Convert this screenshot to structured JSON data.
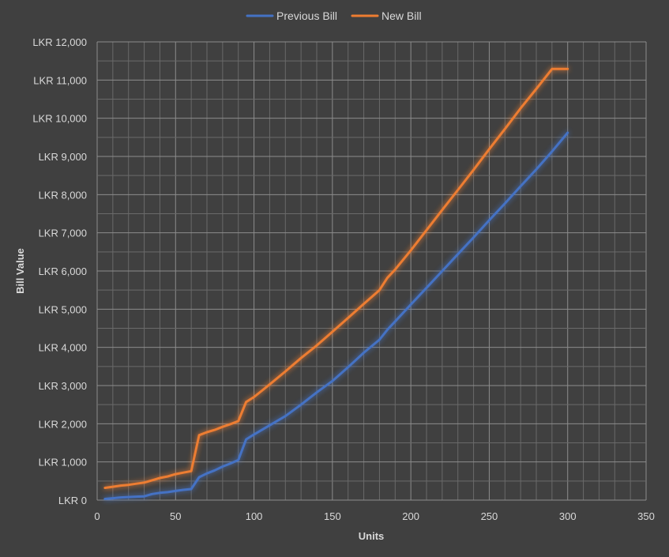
{
  "chart_data": {
    "type": "line",
    "title": "",
    "xlabel": "Units",
    "ylabel": "Bill Value",
    "xlim": [
      0,
      350
    ],
    "ylim": [
      0,
      12000
    ],
    "x_ticks": [
      0,
      50,
      100,
      150,
      200,
      250,
      300,
      350
    ],
    "y_ticks": [
      0,
      1000,
      2000,
      3000,
      4000,
      5000,
      6000,
      7000,
      8000,
      9000,
      10000,
      11000,
      12000
    ],
    "x_tick_labels": [
      "0",
      "50",
      "100",
      "150",
      "200",
      "250",
      "300",
      "350"
    ],
    "y_tick_labels": [
      "LKR 0",
      "LKR 1,000",
      "LKR 2,000",
      "LKR 3,000",
      "LKR 4,000",
      "LKR 5,000",
      "LKR 6,000",
      "LKR 7,000",
      "LKR 8,000",
      "LKR 9,000",
      "LKR 10,000",
      "LKR 11,000",
      "LKR 12,000"
    ],
    "grid": true,
    "legend_position": "top",
    "series": [
      {
        "name": "Previous Bill",
        "color": "#4472c4",
        "x": [
          5,
          10,
          15,
          20,
          25,
          30,
          35,
          40,
          45,
          50,
          55,
          60,
          65,
          70,
          75,
          80,
          85,
          90,
          95,
          100,
          110,
          120,
          130,
          140,
          150,
          160,
          170,
          180,
          185,
          190,
          200,
          210,
          220,
          230,
          240,
          250,
          260,
          270,
          280,
          290,
          300
        ],
        "y": [
          30,
          50,
          70,
          80,
          90,
          100,
          160,
          190,
          210,
          240,
          270,
          290,
          600,
          700,
          780,
          880,
          960,
          1050,
          1590,
          1720,
          1960,
          2200,
          2500,
          2820,
          3120,
          3480,
          3860,
          4200,
          4460,
          4680,
          5120,
          5560,
          6000,
          6440,
          6880,
          7330,
          7770,
          8220,
          8660,
          9130,
          9620
        ]
      },
      {
        "name": "New Bill",
        "color": "#ed7d31",
        "x": [
          5,
          10,
          15,
          20,
          25,
          30,
          35,
          40,
          45,
          50,
          55,
          60,
          65,
          70,
          75,
          80,
          85,
          90,
          95,
          100,
          110,
          120,
          130,
          140,
          150,
          160,
          170,
          180,
          185,
          190,
          200,
          210,
          220,
          230,
          240,
          250,
          260,
          270,
          280,
          290,
          300
        ],
        "y": [
          320,
          350,
          380,
          400,
          430,
          460,
          520,
          580,
          620,
          680,
          720,
          760,
          1700,
          1780,
          1840,
          1920,
          1990,
          2070,
          2570,
          2700,
          3030,
          3370,
          3720,
          4050,
          4410,
          4770,
          5140,
          5500,
          5820,
          6040,
          6540,
          7070,
          7600,
          8120,
          8650,
          9190,
          9720,
          10260,
          10770,
          11290,
          11290
        ]
      }
    ]
  }
}
